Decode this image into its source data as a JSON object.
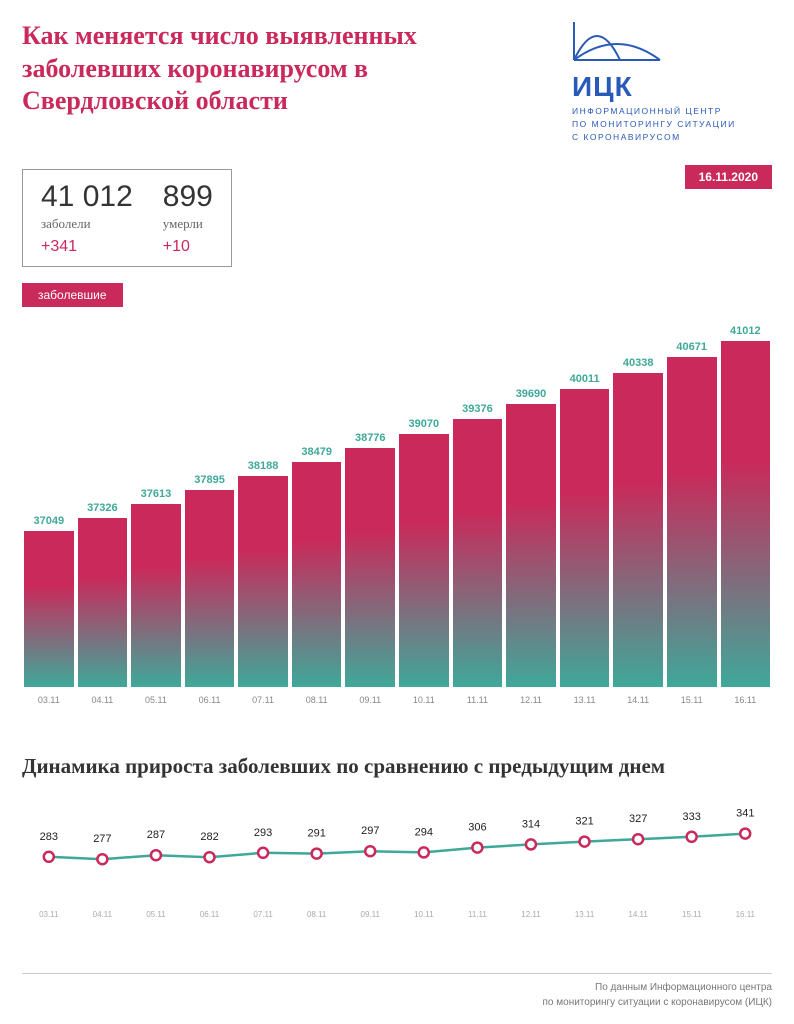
{
  "colors": {
    "accent": "#c92a5b",
    "teal": "#3fa89a",
    "logo": "#2a5ab8",
    "text_dark": "#222",
    "text_muted": "#777"
  },
  "header": {
    "title": "Как меняется число выявленных заболевших коронавирусом в Свердловской области",
    "logo_text": "ИЦК",
    "logo_sub_l1": "ИНФОРМАЦИОННЫЙ ЦЕНТР",
    "logo_sub_l2": "ПО МОНИТОРИНГУ СИТУАЦИИ",
    "logo_sub_l3": "С КОРОНАВИРУСОМ",
    "date": "16.11.2020"
  },
  "stats": {
    "infected_total": "41 012",
    "infected_label": "заболели",
    "infected_delta": "+341",
    "deaths_total": "899",
    "deaths_label": "умерли",
    "deaths_delta": "+10"
  },
  "legend": "заболевшие",
  "bar_chart": {
    "type": "bar",
    "gradient_top": "#c92a5b",
    "gradient_bottom": "#3fa89a",
    "value_color": "#3fa89a",
    "x_color": "#888",
    "y_min": 33800,
    "y_max": 41500,
    "categories": [
      "03.11",
      "04.11",
      "05.11",
      "06.11",
      "07.11",
      "08.11",
      "09.11",
      "10.11",
      "11.11",
      "12.11",
      "13.11",
      "14.11",
      "15.11",
      "16.11"
    ],
    "values": [
      37049,
      37326,
      37613,
      37895,
      38188,
      38479,
      38776,
      39070,
      39376,
      39690,
      40011,
      40338,
      40671,
      41012
    ]
  },
  "subtitle": "Динамика прироста заболевших по сравнению с предыдущим днем",
  "line_chart": {
    "type": "line",
    "line_color": "#3fa89a",
    "marker_fill": "#ffffff",
    "marker_stroke": "#c92a5b",
    "marker_radius": 5,
    "line_width": 2.5,
    "y_min": 250,
    "y_max": 400,
    "categories": [
      "03.11",
      "04.11",
      "05.11",
      "06.11",
      "07.11",
      "08.11",
      "09.11",
      "10.11",
      "11.11",
      "12.11",
      "13.11",
      "14.11",
      "15.11",
      "16.11"
    ],
    "values": [
      283,
      277,
      287,
      282,
      293,
      291,
      297,
      294,
      306,
      314,
      321,
      327,
      333,
      341
    ]
  },
  "footer": {
    "l1": "По данным Информационного центра",
    "l2": "по мониторингу ситуации с коронавирусом (ИЦК)"
  }
}
